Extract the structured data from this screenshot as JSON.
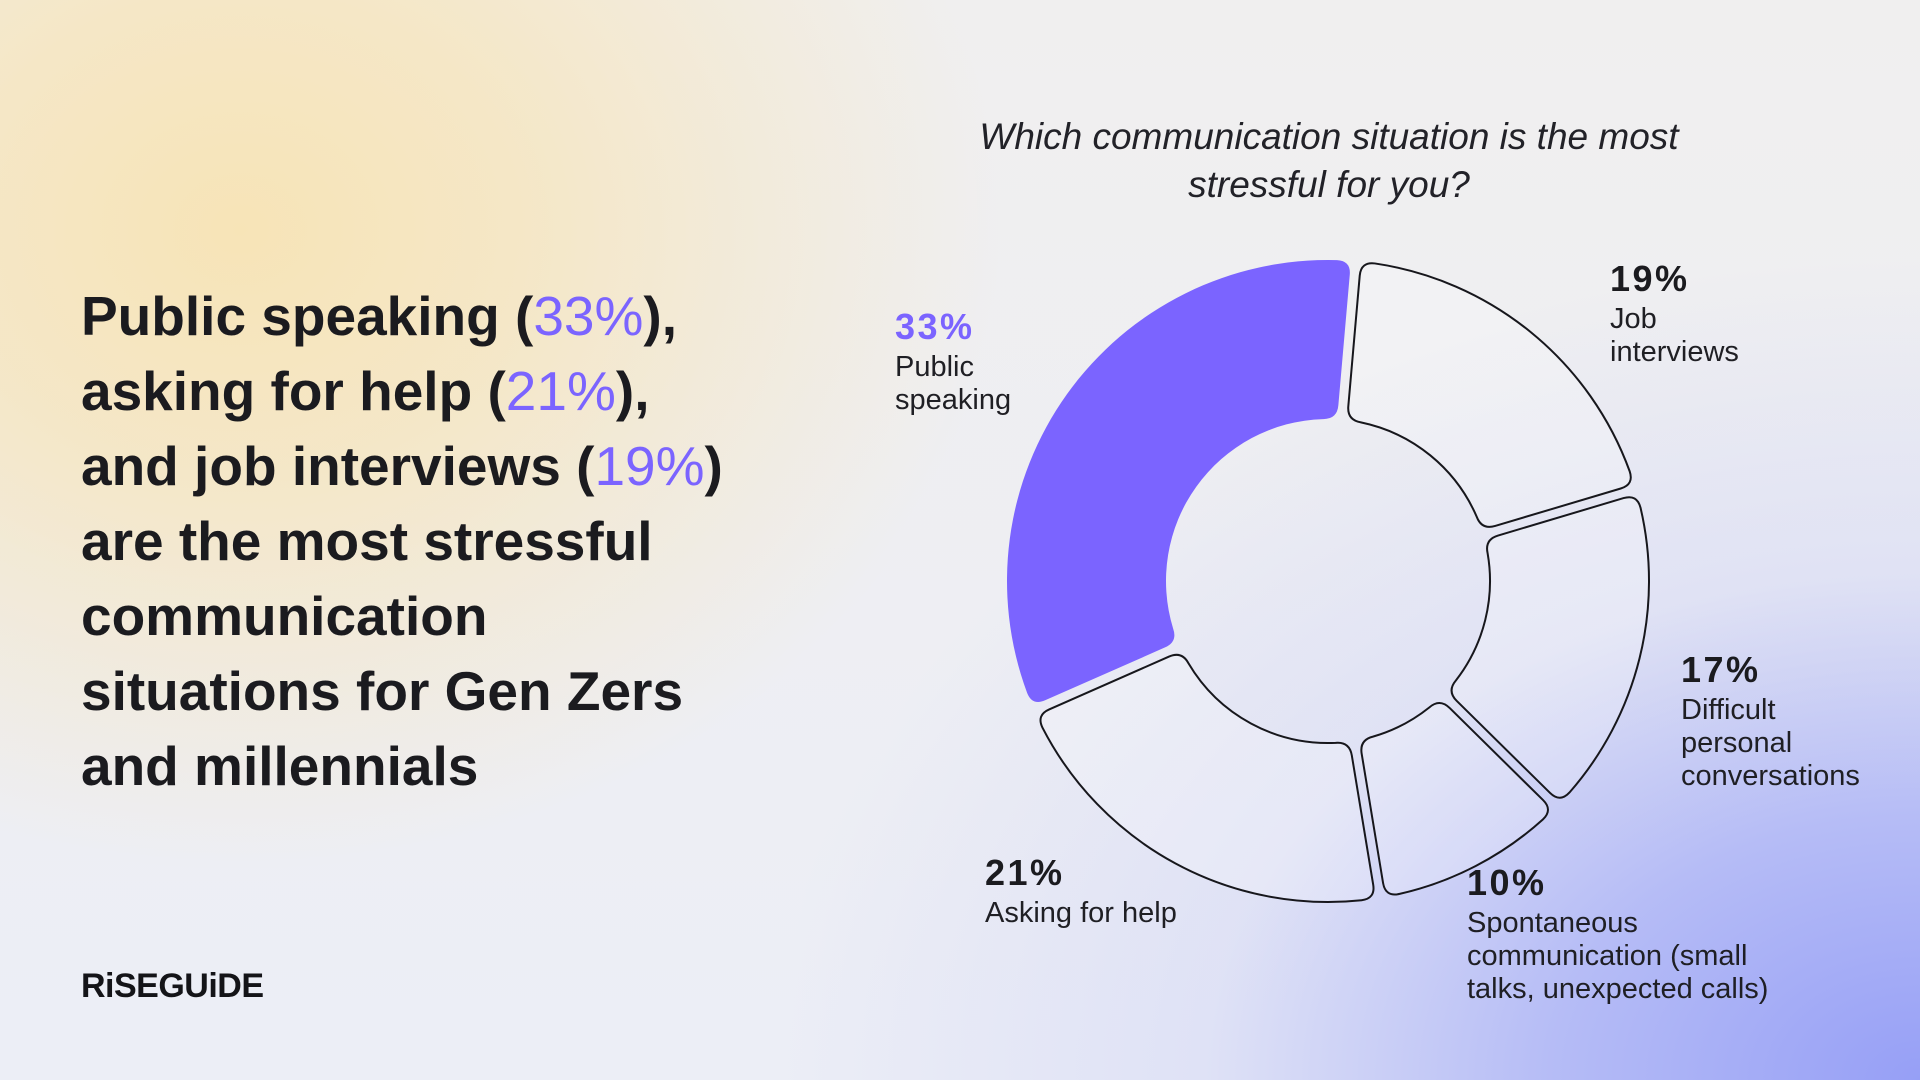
{
  "headline": {
    "segments": [
      "Public speaking (",
      "33%",
      "),",
      "asking for help (",
      "21%",
      "),",
      "and job interviews (",
      "19%",
      ")",
      "are the most stressful",
      "communication",
      "situations for Gen Zers",
      "and millennials"
    ]
  },
  "brand": {
    "logo_text": "RiSEGUiDE"
  },
  "colors": {
    "accent": "#7b64ff",
    "text": "#1b1b1f",
    "outline": "#17171c"
  },
  "chart_data": {
    "type": "pie",
    "variant": "donut",
    "title": "Which communication situation is the most stressful for you?",
    "categories": [
      "Public speaking",
      "Job interviews",
      "Difficult personal conversations",
      "Spontaneous communication (small talks, unexpected calls)",
      "Asking for help"
    ],
    "values": [
      33,
      19,
      17,
      10,
      21
    ],
    "value_labels": [
      "33%",
      "19%",
      "17%",
      "10%",
      "21%"
    ],
    "highlighted_category": "Public speaking"
  }
}
